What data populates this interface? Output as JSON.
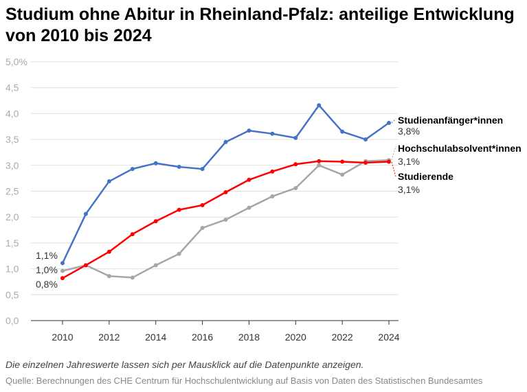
{
  "title": "Studium ohne Abitur in Rheinland-Pfalz: anteilige Entwicklung von 2010 bis 2024",
  "note": "Die einzelnen Jahreswerte lassen sich per Mausklick auf die Datenpunkte anzeigen.",
  "source": "Quelle: Berechnungen des CHE Centrum für Hochschulentwicklung auf Basis von Daten des Statistischen Bundesamtes",
  "chart_data": {
    "type": "line",
    "x": [
      2010,
      2011,
      2012,
      2013,
      2014,
      2015,
      2016,
      2017,
      2018,
      2019,
      2020,
      2021,
      2022,
      2023,
      2024
    ],
    "xticks": [
      "2010",
      "2012",
      "2014",
      "2016",
      "2018",
      "2020",
      "2022",
      "2024"
    ],
    "yticks": [
      "0,0",
      "0,5",
      "1,0",
      "1,5",
      "2,0",
      "2,5",
      "3,0",
      "3,5",
      "4,0",
      "4,5",
      "5,0%"
    ],
    "ylim": [
      0,
      5
    ],
    "grid": true,
    "series": [
      {
        "name": "Studienanfänger*innen",
        "color": "#4472c4",
        "start_label": "1,1%",
        "end_label": "3,8%",
        "values": [
          1.11,
          2.06,
          2.69,
          2.93,
          3.04,
          2.97,
          2.93,
          3.45,
          3.67,
          3.61,
          3.53,
          4.16,
          3.65,
          3.5,
          3.82
        ]
      },
      {
        "name": "Hochschulabsolvent*innen",
        "color": "#a6a6a6",
        "start_label": "1,0%",
        "end_label": "3,1%",
        "values": [
          0.96,
          1.07,
          0.86,
          0.83,
          1.07,
          1.29,
          1.79,
          1.95,
          2.18,
          2.4,
          2.56,
          3.0,
          2.82,
          3.08,
          3.1
        ]
      },
      {
        "name": "Studierende",
        "color": "#ff0000",
        "start_label": "0,8%",
        "end_label": "3,1%",
        "values": [
          0.82,
          1.07,
          1.33,
          1.67,
          1.92,
          2.14,
          2.23,
          2.48,
          2.72,
          2.88,
          3.02,
          3.08,
          3.07,
          3.05,
          3.07
        ]
      }
    ]
  }
}
